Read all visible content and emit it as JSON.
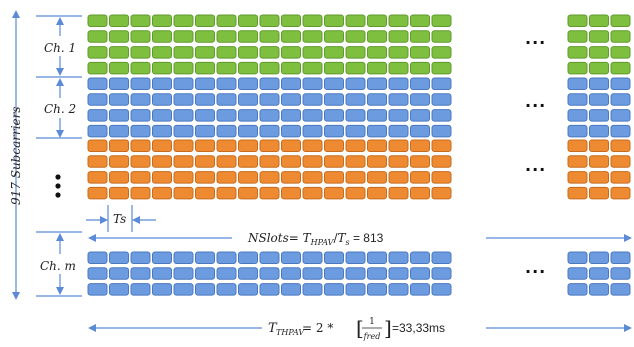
{
  "colors": {
    "green": "#7fbf3f",
    "blue": "#6d9bdf",
    "orange": "#ee8b32",
    "arrow": "#5b8ad6"
  },
  "labels": {
    "ch1": "Ch. 1",
    "ch2": "Ch. 2",
    "chm": "Ch. m",
    "subcarriers": "917 Subcarriers",
    "ts": "Ts",
    "nslots_prefix": "NSlots= ",
    "nslots_thpav": "THPAV",
    "nslots_div": "/",
    "nslots_ts": "Ts",
    "nslots_value": " = 813",
    "thpav": "THPAV",
    "thpav_eq": " = 2 * ",
    "frac_num": "1",
    "frac_den": "fred",
    "thpav_value": "=33,33ms",
    "ellipsis_h": "...",
    "ellipsis_v": "⋮"
  },
  "grid": {
    "columns_left": 17,
    "columns_right": 3,
    "groups": [
      {
        "name": "ch1",
        "color": "green",
        "rows": 4
      },
      {
        "name": "ch2",
        "color": "blue",
        "rows": 4
      },
      {
        "name": "ch3",
        "color": "orange",
        "rows": 4
      },
      {
        "name": "chm",
        "color": "blue",
        "rows": 3
      }
    ]
  }
}
